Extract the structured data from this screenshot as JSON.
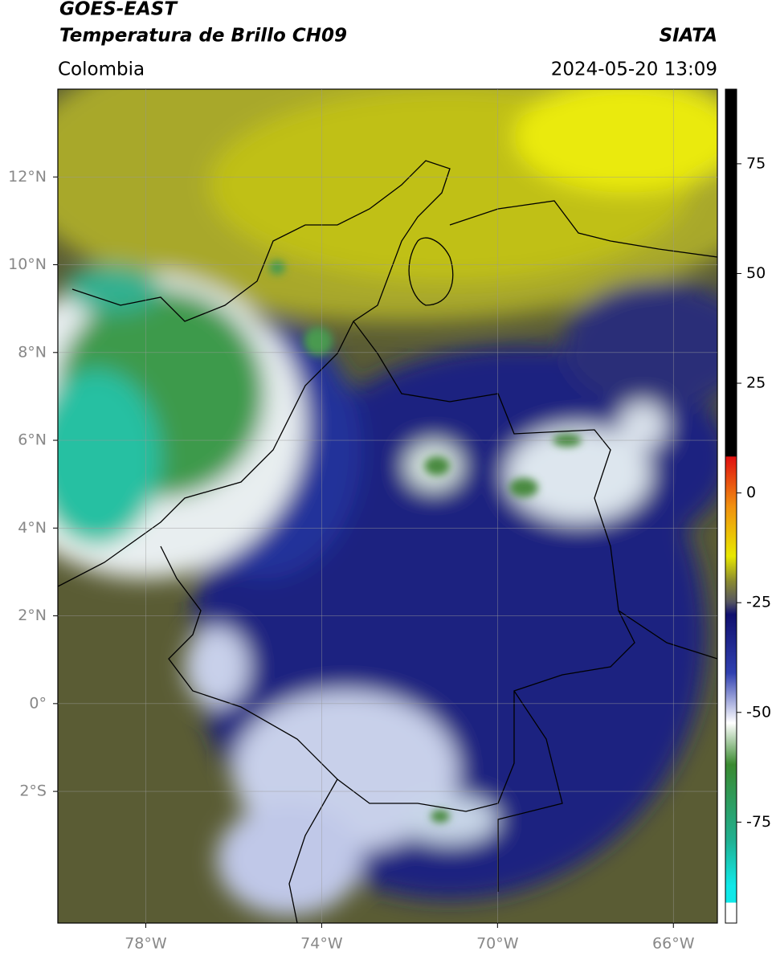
{
  "header": {
    "title": "GOES-EAST",
    "subtitle": "Temperatura de Brillo CH09",
    "region": "Colombia",
    "source": "SIATA",
    "timestamp": "2024-05-20 13:09"
  },
  "map": {
    "lonlim": [
      -80,
      -65
    ],
    "latlim": [
      -5,
      14
    ],
    "lonticks": [
      {
        "value": -78,
        "label": "78°W"
      },
      {
        "value": -74,
        "label": "74°W"
      },
      {
        "value": -70,
        "label": "70°W"
      },
      {
        "value": -66,
        "label": "66°W"
      }
    ],
    "latticks": [
      {
        "value": 12,
        "label": "12°N"
      },
      {
        "value": 10,
        "label": "10°N"
      },
      {
        "value": 8,
        "label": "8°N"
      },
      {
        "value": 6,
        "label": "6°N"
      },
      {
        "value": 4,
        "label": "4°N"
      },
      {
        "value": 2,
        "label": "2°N"
      },
      {
        "value": 0,
        "label": "0°"
      },
      {
        "value": -2,
        "label": "2°S"
      }
    ]
  },
  "colorbar": {
    "lim": [
      -98,
      92
    ],
    "ticks": [
      75,
      50,
      25,
      0,
      -25,
      -50,
      -75
    ]
  }
}
